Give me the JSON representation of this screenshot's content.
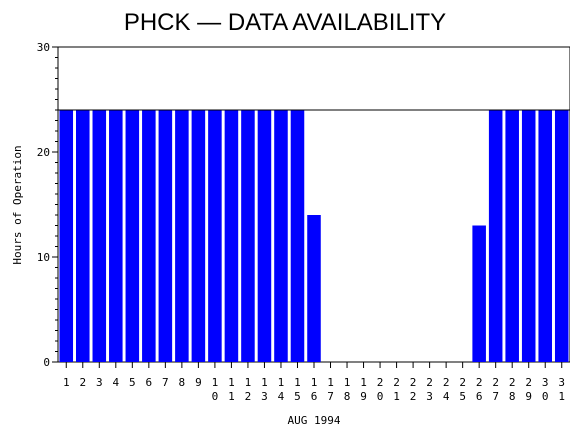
{
  "chart_data": {
    "type": "bar",
    "title": "PHCK — DATA AVAILABILITY",
    "xlabel": "AUG 1994",
    "ylabel": "Hours of Operation",
    "ylim": [
      0,
      30
    ],
    "yticks": [
      0,
      10,
      20,
      30
    ],
    "reference_line": 24,
    "bar_color": "#0000ff",
    "categories": [
      "1",
      "2",
      "3",
      "4",
      "5",
      "6",
      "7",
      "8",
      "9",
      "10",
      "11",
      "12",
      "13",
      "14",
      "15",
      "16",
      "17",
      "18",
      "19",
      "20",
      "21",
      "22",
      "23",
      "24",
      "25",
      "26",
      "27",
      "28",
      "29",
      "30",
      "31"
    ],
    "values": [
      24,
      24,
      24,
      24,
      24,
      24,
      24,
      24,
      24,
      24,
      24,
      24,
      24,
      24,
      24,
      14,
      0,
      0,
      0,
      0,
      0,
      0,
      0,
      0,
      0,
      13,
      24,
      24,
      24,
      24,
      24
    ]
  }
}
